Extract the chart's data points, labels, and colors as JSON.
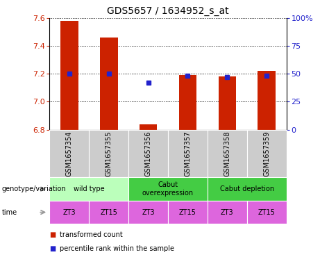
{
  "title": "GDS5657 / 1634952_s_at",
  "samples": [
    "GSM1657354",
    "GSM1657355",
    "GSM1657356",
    "GSM1657357",
    "GSM1657358",
    "GSM1657359"
  ],
  "transformed_counts": [
    7.58,
    7.46,
    6.84,
    7.19,
    7.18,
    7.22
  ],
  "percentile_ranks": [
    50,
    50,
    42,
    48,
    47,
    48
  ],
  "ylim_left": [
    6.8,
    7.6
  ],
  "ylim_right": [
    0,
    100
  ],
  "left_ticks": [
    6.8,
    7.0,
    7.2,
    7.4,
    7.6
  ],
  "right_ticks": [
    0,
    25,
    50,
    75,
    100
  ],
  "bar_color": "#cc2200",
  "dot_color": "#2222cc",
  "genotype_data": [
    {
      "label": "wild type",
      "start": 0,
      "end": 2,
      "color": "#bbffbb"
    },
    {
      "label": "Cabut\noverexpression",
      "start": 2,
      "end": 4,
      "color": "#44cc44"
    },
    {
      "label": "Cabut depletion",
      "start": 4,
      "end": 6,
      "color": "#44cc44"
    }
  ],
  "time_labels": [
    "ZT3",
    "ZT15",
    "ZT3",
    "ZT15",
    "ZT3",
    "ZT15"
  ],
  "time_color": "#dd66dd",
  "sample_bg_color": "#cccccc",
  "legend_items": [
    {
      "label": "transformed count",
      "color": "#cc2200"
    },
    {
      "label": "percentile rank within the sample",
      "color": "#2222cc"
    }
  ],
  "title_fontsize": 10,
  "axis_color_left": "#cc2200",
  "axis_color_right": "#2222cc",
  "label_fontsize": 7,
  "sample_fontsize": 7,
  "tick_fontsize": 8
}
